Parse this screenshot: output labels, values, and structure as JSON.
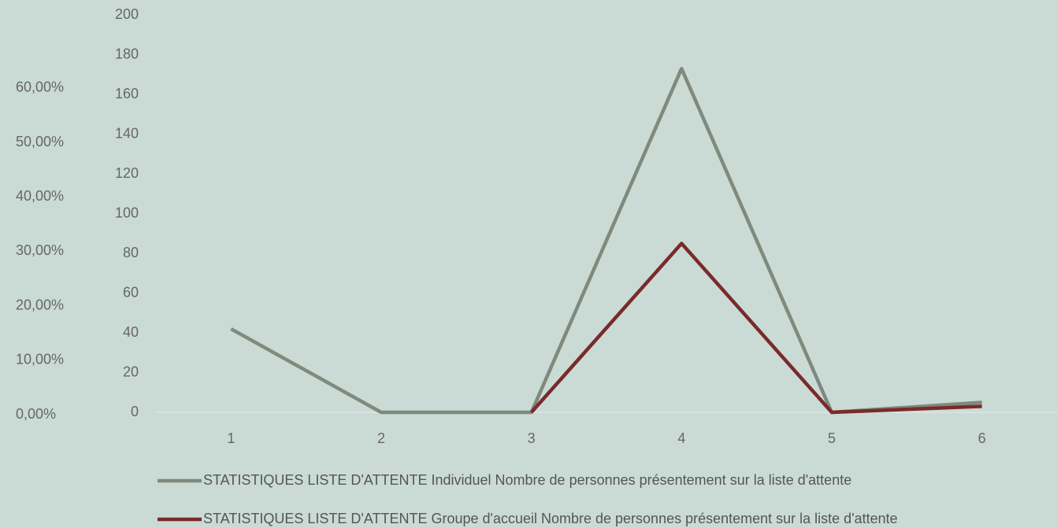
{
  "chart_data": {
    "type": "line",
    "categories": [
      "1",
      "2",
      "3",
      "4",
      "5",
      "6"
    ],
    "series": [
      {
        "name": "STATISTIQUES LISTE D'ATTENTE Individuel Nombre de personnes présentement sur la liste d'attente",
        "color": "#7f8a7c",
        "values": [
          42,
          0,
          0,
          173,
          0,
          5
        ]
      },
      {
        "name": "STATISTIQUES LISTE D'ATTENTE Groupe d'accueil Nombre de personnes présentement sur la liste d'attente",
        "color": "#7a2a2a",
        "values": [
          null,
          null,
          0,
          85,
          0,
          3
        ]
      }
    ],
    "ylim": [
      0,
      200
    ],
    "yticks": [
      0,
      20,
      40,
      60,
      80,
      100,
      120,
      140,
      160,
      180,
      200
    ],
    "y2lim": [
      0,
      73
    ],
    "y2ticks": [
      {
        "value": 0,
        "label": "0,00%"
      },
      {
        "value": 10,
        "label": "10,00%"
      },
      {
        "value": 20,
        "label": "20,00%"
      },
      {
        "value": 30,
        "label": "30,00%"
      },
      {
        "value": 40,
        "label": "40,00%"
      },
      {
        "value": 50,
        "label": "50,00%"
      },
      {
        "value": 60,
        "label": "60,00%"
      }
    ],
    "legend": "bottom",
    "grid": false
  }
}
